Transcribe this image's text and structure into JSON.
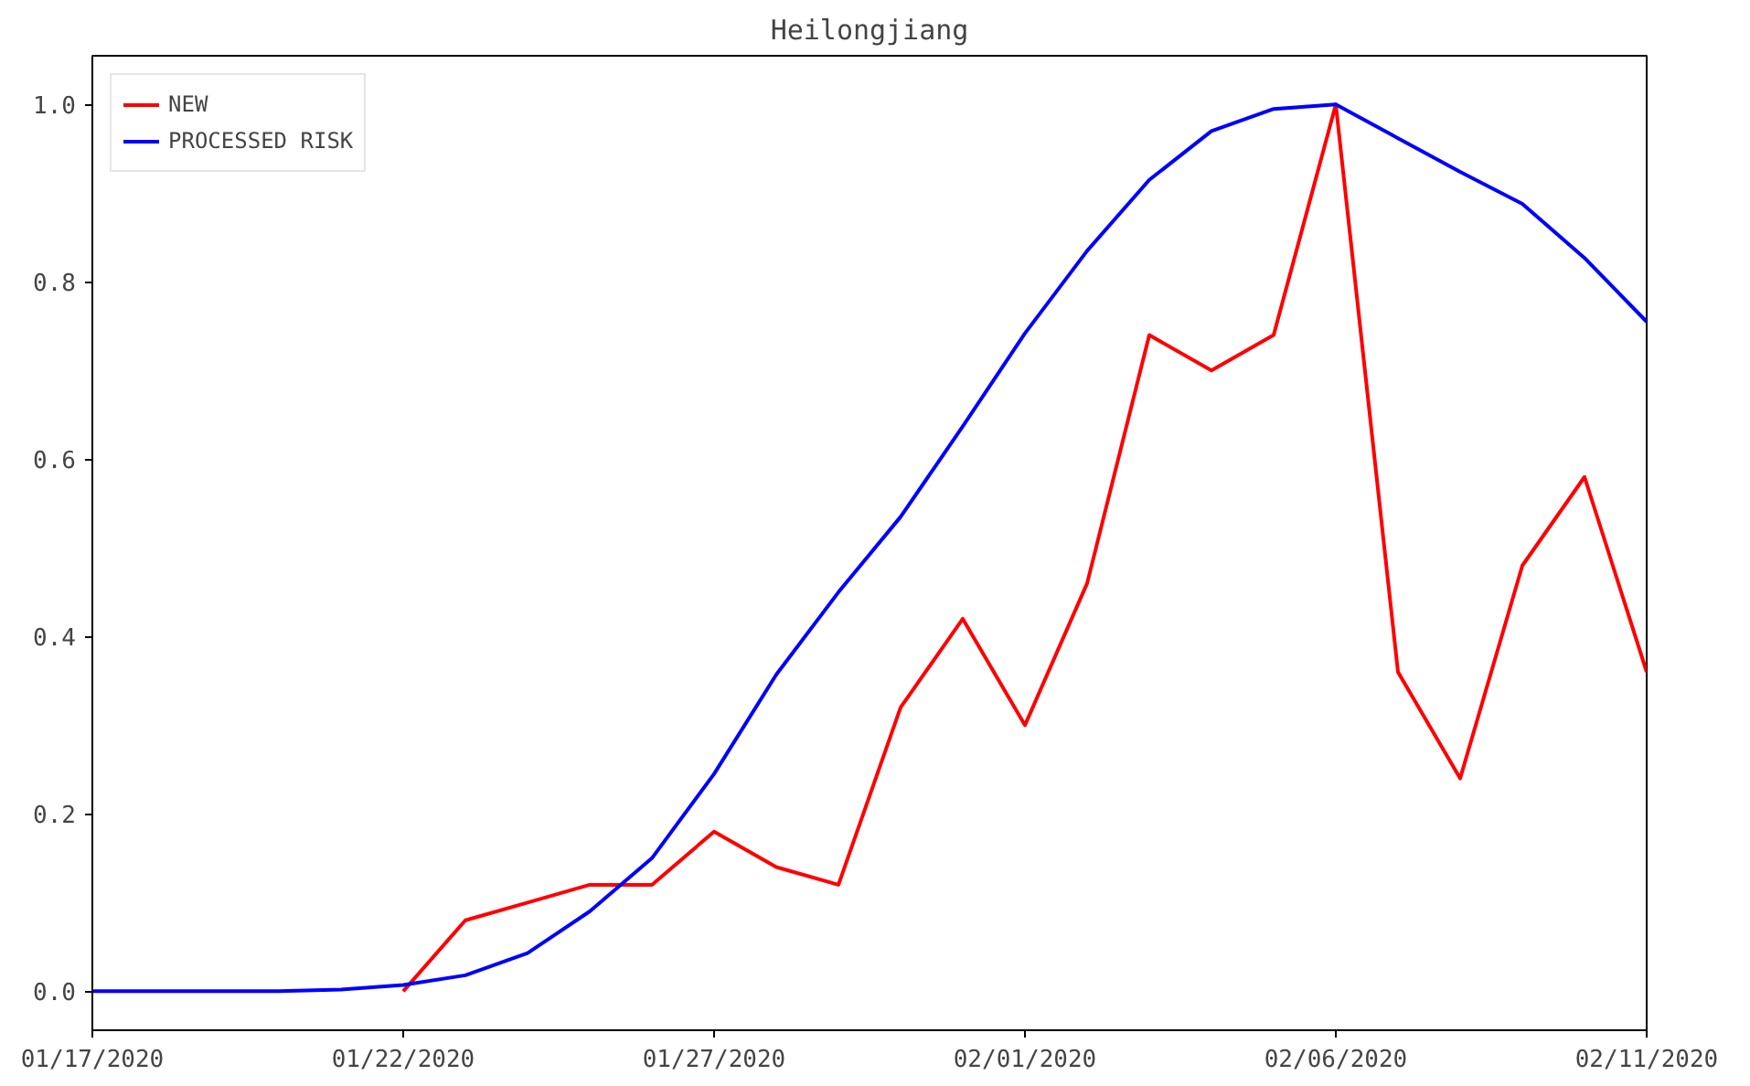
{
  "chart_data": {
    "type": "line",
    "title": "Heilongjiang",
    "x": [
      "2020-01-17",
      "2020-01-18",
      "2020-01-19",
      "2020-01-20",
      "2020-01-21",
      "2020-01-22",
      "2020-01-23",
      "2020-01-24",
      "2020-01-25",
      "2020-01-26",
      "2020-01-27",
      "2020-01-28",
      "2020-01-29",
      "2020-01-30",
      "2020-01-31",
      "2020-02-01",
      "2020-02-02",
      "2020-02-03",
      "2020-02-04",
      "2020-02-05",
      "2020-02-06",
      "2020-02-07",
      "2020-02-08",
      "2020-02-09",
      "2020-02-10",
      "2020-02-11"
    ],
    "series": [
      {
        "name": "NEW",
        "color": "#ff0000",
        "values": [
          null,
          null,
          null,
          null,
          null,
          0,
          0.08,
          0.1,
          0.12,
          0.12,
          0.18,
          0.14,
          0.12,
          0.32,
          0.42,
          0.3,
          0.46,
          0.74,
          0.7,
          0.74,
          1.0,
          0.36,
          0.24,
          0.48,
          0.58,
          0.36
        ]
      },
      {
        "name": "PROCESSED RISK",
        "color": "#0000ff",
        "values": [
          0,
          0,
          0,
          0,
          0.002,
          0.007,
          0.018,
          0.043,
          0.09,
          0.15,
          0.245,
          0.357,
          0.45,
          0.535,
          0.637,
          0.742,
          0.835,
          0.915,
          0.97,
          0.995,
          1.0,
          0.962,
          0.924,
          0.888,
          0.827,
          0.755
        ]
      }
    ],
    "xlim": [
      "2020-01-17",
      "2020-02-11"
    ],
    "xticks": [
      {
        "value": "2020-01-17",
        "label": "01/17/2020"
      },
      {
        "value": "2020-01-22",
        "label": "01/22/2020"
      },
      {
        "value": "2020-01-27",
        "label": "01/27/2020"
      },
      {
        "value": "2020-02-01",
        "label": "02/01/2020"
      },
      {
        "value": "2020-02-06",
        "label": "02/06/2020"
      },
      {
        "value": "2020-02-11",
        "label": "02/11/2020"
      }
    ],
    "ylim": [
      -0.044,
      1.055
    ],
    "yticks": [
      {
        "value": 0,
        "label": "0.0"
      },
      {
        "value": 0.2,
        "label": "0.2"
      },
      {
        "value": 0.4,
        "label": "0.4"
      },
      {
        "value": 0.6,
        "label": "0.6"
      },
      {
        "value": 0.8,
        "label": "0.8"
      },
      {
        "value": 1.0,
        "label": "1.0"
      }
    ],
    "grid": false,
    "legend": "top left",
    "marker": "none",
    "line_style": "solid"
  }
}
